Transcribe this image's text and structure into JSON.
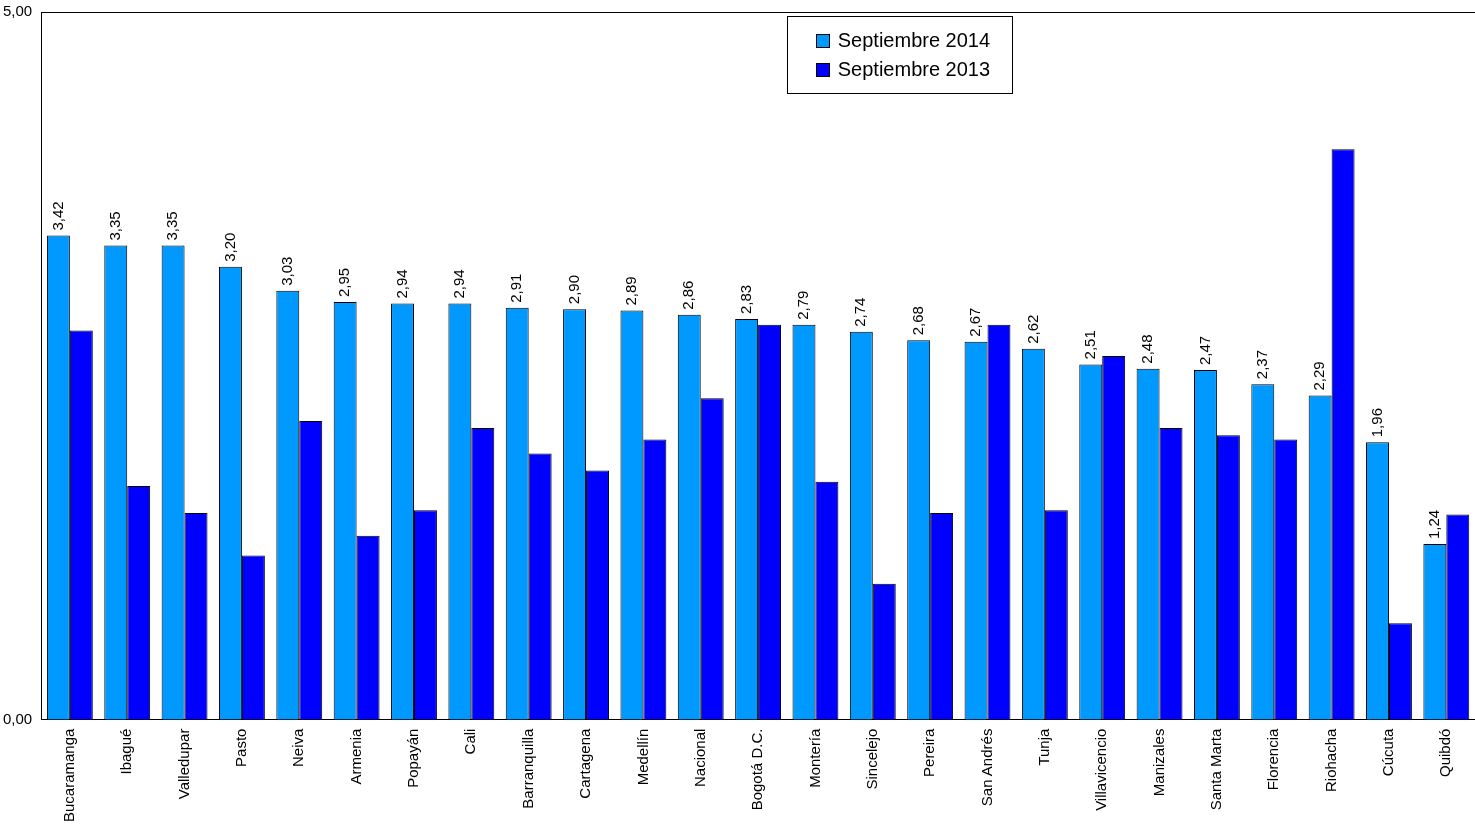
{
  "chart_data": {
    "type": "bar",
    "categories": [
      "Bucaramanga",
      "Ibagué",
      "Valledupar",
      "Pasto",
      "Neiva",
      "Armenia",
      "Popayán",
      "Cali",
      "Barranquilla",
      "Cartagena",
      "Medellín",
      "Nacional",
      "Bogotá D.C.",
      "Montería",
      "Sincelejo",
      "Pereira",
      "San Andrés",
      "Tunja",
      "Villavicencio",
      "Manizales",
      "Santa Marta",
      "Florencia",
      "Riohacha",
      "Cúcuta",
      "Quibdó"
    ],
    "series": [
      {
        "name": "Septiembre 2014",
        "color": "#0099ff",
        "values": [
          3.42,
          3.35,
          3.35,
          3.2,
          3.03,
          2.95,
          2.94,
          2.94,
          2.91,
          2.9,
          2.89,
          2.86,
          2.83,
          2.79,
          2.74,
          2.68,
          2.67,
          2.62,
          2.51,
          2.48,
          2.47,
          2.37,
          2.29,
          1.96,
          1.24
        ],
        "value_labels": [
          "3,42",
          "3,35",
          "3,35",
          "3,20",
          "3,03",
          "2,95",
          "2,94",
          "2,94",
          "2,91",
          "2,90",
          "2,89",
          "2,86",
          "2,83",
          "2,79",
          "2,74",
          "2,68",
          "2,67",
          "2,62",
          "2,51",
          "2,48",
          "2,47",
          "2,37",
          "2,29",
          "1,96",
          "1,24"
        ]
      },
      {
        "name": "Septiembre 2013",
        "color": "#0000ff",
        "values": [
          2.75,
          1.65,
          1.46,
          1.16,
          2.11,
          1.3,
          1.48,
          2.06,
          1.88,
          1.76,
          1.98,
          2.27,
          2.79,
          1.68,
          0.96,
          1.46,
          2.79,
          1.48,
          2.57,
          2.06,
          2.01,
          1.98,
          4.03,
          0.68,
          1.45
        ]
      }
    ],
    "ylim": [
      0,
      5
    ],
    "yticks": [
      {
        "value": 0,
        "label": "0,00"
      },
      {
        "value": 5,
        "label": "5,00"
      }
    ],
    "grid": false,
    "legend": "top"
  }
}
